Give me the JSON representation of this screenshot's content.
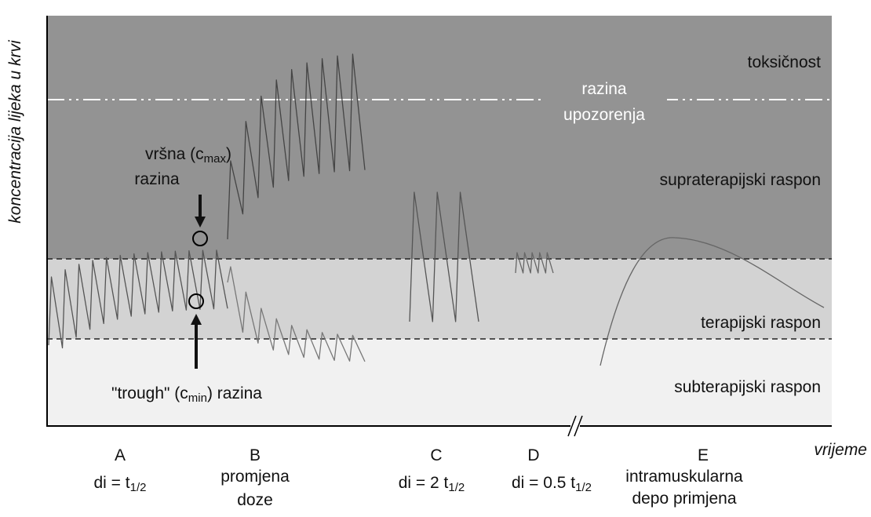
{
  "y_axis_label": "koncentracija lijeka u krvi",
  "x_axis_label": "vrijeme",
  "zones": [
    "toksičnost",
    "supraterapijski raspon",
    "terapijski raspon",
    "subterapijski raspon"
  ],
  "warning_level": [
    "razina",
    "upozorenja"
  ],
  "peak_label": {
    "start": "vršna (c",
    "sub": "max",
    "end": ")",
    "line2": "razina"
  },
  "trough_label": {
    "start": "\"trough\" (c",
    "sub": "min",
    "end": ") razina"
  },
  "sections": [
    {
      "letter": "A",
      "text": "di = t",
      "sub": "1/2"
    },
    {
      "letter": "B",
      "lines": [
        "promjena",
        "doze"
      ]
    },
    {
      "letter": "C",
      "text": "di = 2 t",
      "sub": "1/2"
    },
    {
      "letter": "D",
      "text": "di = 0.5 t",
      "sub": "1/2"
    },
    {
      "letter": "E",
      "lines": [
        "intramuskularna",
        "depo primjena"
      ]
    }
  ]
}
